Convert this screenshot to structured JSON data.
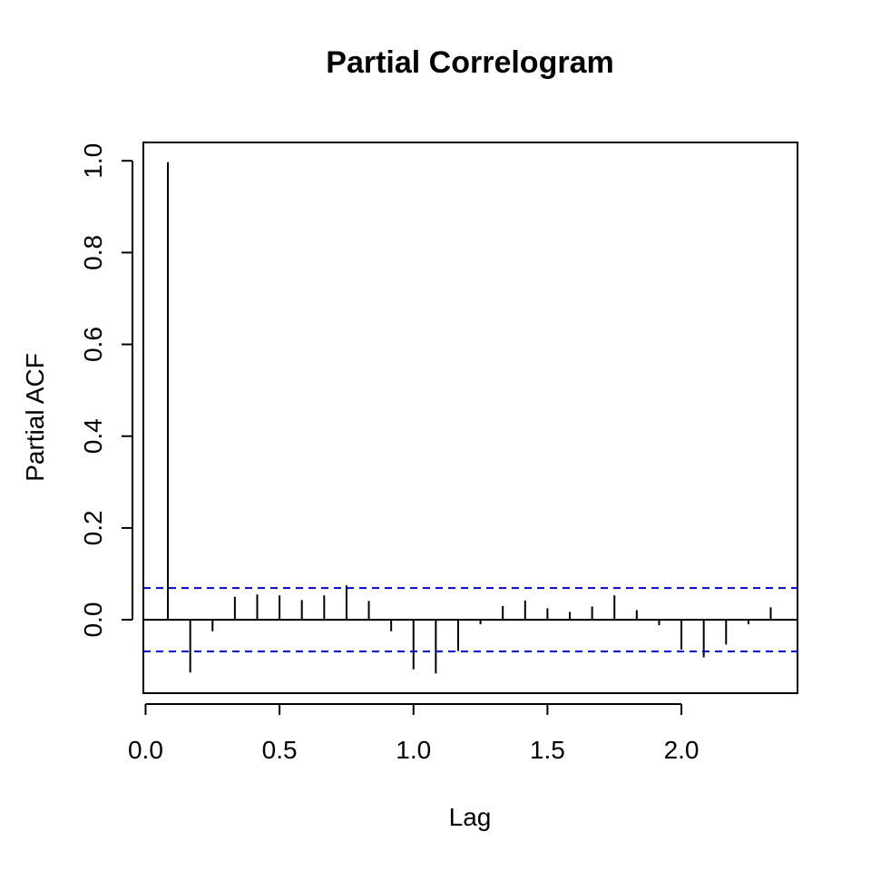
{
  "chart_data": {
    "type": "bar",
    "title": "Partial Correlogram",
    "xlabel": "Lag",
    "ylabel": "Partial ACF",
    "xlim": [
      -0.0083,
      2.4333
    ],
    "ylim": [
      -0.16,
      1.04
    ],
    "x_ticks": [
      0.0,
      0.5,
      1.0,
      1.5,
      2.0
    ],
    "x_tick_labels": [
      "0.0",
      "0.5",
      "1.0",
      "1.5",
      "2.0"
    ],
    "y_ticks": [
      0.0,
      0.2,
      0.4,
      0.6,
      0.8,
      1.0
    ],
    "y_tick_labels": [
      "0.0",
      "0.2",
      "0.4",
      "0.6",
      "0.8",
      "1.0"
    ],
    "confidence_bounds": [
      0.069,
      -0.069
    ],
    "confidence_color": "#0000cc",
    "grid": false,
    "series": [
      {
        "lags": [
          0.0833,
          0.1667,
          0.25,
          0.3333,
          0.4167,
          0.5,
          0.5833,
          0.6667,
          0.75,
          0.8333,
          0.9167,
          1.0,
          1.0833,
          1.1667,
          1.25,
          1.3333,
          1.4167,
          1.5,
          1.5833,
          1.6667,
          1.75,
          1.8333,
          1.9167,
          2.0,
          2.0833,
          2.1667,
          2.25,
          2.3333
        ],
        "values": [
          0.997,
          -0.115,
          -0.025,
          0.05,
          0.055,
          0.053,
          0.043,
          0.053,
          0.075,
          0.041,
          -0.025,
          -0.108,
          -0.117,
          -0.068,
          -0.01,
          0.03,
          0.042,
          0.025,
          0.017,
          0.029,
          0.053,
          0.021,
          -0.012,
          -0.065,
          -0.082,
          -0.054,
          -0.01,
          0.027
        ]
      }
    ]
  }
}
